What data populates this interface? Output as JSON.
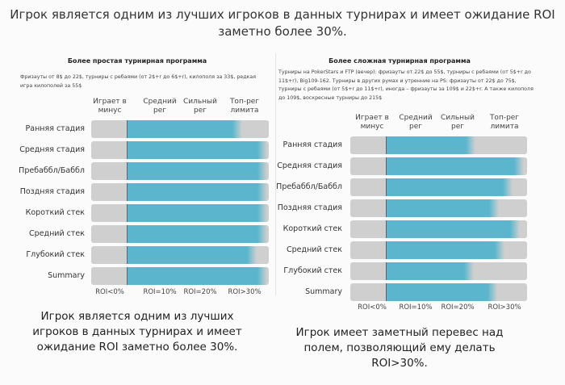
{
  "title": "Игрок является одним из лучших игроков в данных турнирах и имеет ожидание ROI заметно более 30%.",
  "colors": {
    "fill": "#5bb5cd",
    "track": "#cfcfcf",
    "zero_line": "#4f6b78"
  },
  "chart_data": [
    {
      "type": "bar",
      "orientation": "horizontal",
      "title": "Более простая турнирная программа",
      "description": "Фризауты от 8$ до 22$, турниры с ребаями (от 2$+r до 6$+r), килополя за 33$, редкая игра килополей за 55$",
      "column_headers": [
        "Играет в минус",
        "Средний рег",
        "Сильный рег",
        "Топ-рег лимита"
      ],
      "x_tick_labels": [
        "ROI<0%",
        "ROI=10%",
        "ROI=20%",
        "ROI>30%"
      ],
      "categories": [
        "Ранняя стадия",
        "Средняя стадия",
        "Пребаббл/Баббл",
        "Поздняя стадия",
        "Короткий стек",
        "Средний стек",
        "Глубокий стек",
        "Summary"
      ],
      "zero_level": 0.2,
      "values": [
        0.82,
        0.96,
        0.96,
        0.96,
        0.96,
        0.96,
        0.9,
        0.96
      ],
      "value_unit": "fraction of scale",
      "caption": "Игрок является одним из лучших игроков в данных турнирах и имеет ожидание ROI заметно более 30%."
    },
    {
      "type": "bar",
      "orientation": "horizontal",
      "title": "Более сложная турнирная программа",
      "description": "Турниры на PokerStars и FTP (вечер): фризауты от 22$ до 55$, турниры с ребаями (от 5$+r до 11$+r), Big109-162. Турниры в других румах и утренние на PS: фризауты от 22$ до 75$, турниры с ребаями (от 5$+r до 11$+r), иногда – фризауты за 109$ и 22$+r. А также килополя до 109$, воскресные турниры до 215$",
      "column_headers": [
        "Играет в минус",
        "Средний рег",
        "Сильный рег",
        "Топ-рег лимита"
      ],
      "x_tick_labels": [
        "ROI<0%",
        "ROI=10%",
        "ROI=20%",
        "ROI>30%"
      ],
      "categories": [
        "Ранняя стадия",
        "Средняя стадия",
        "Пребаббл/Баббл",
        "Поздняя стадия",
        "Короткий стек",
        "Средний стек",
        "Глубокий стек",
        "Summary"
      ],
      "zero_level": 0.2,
      "values": [
        0.68,
        0.95,
        0.89,
        0.81,
        0.93,
        0.84,
        0.67,
        0.8
      ],
      "value_unit": "fraction of scale",
      "caption": "Игрок имеет заметный перевес над полем, позволяющий ему делать ROI>30%."
    }
  ]
}
